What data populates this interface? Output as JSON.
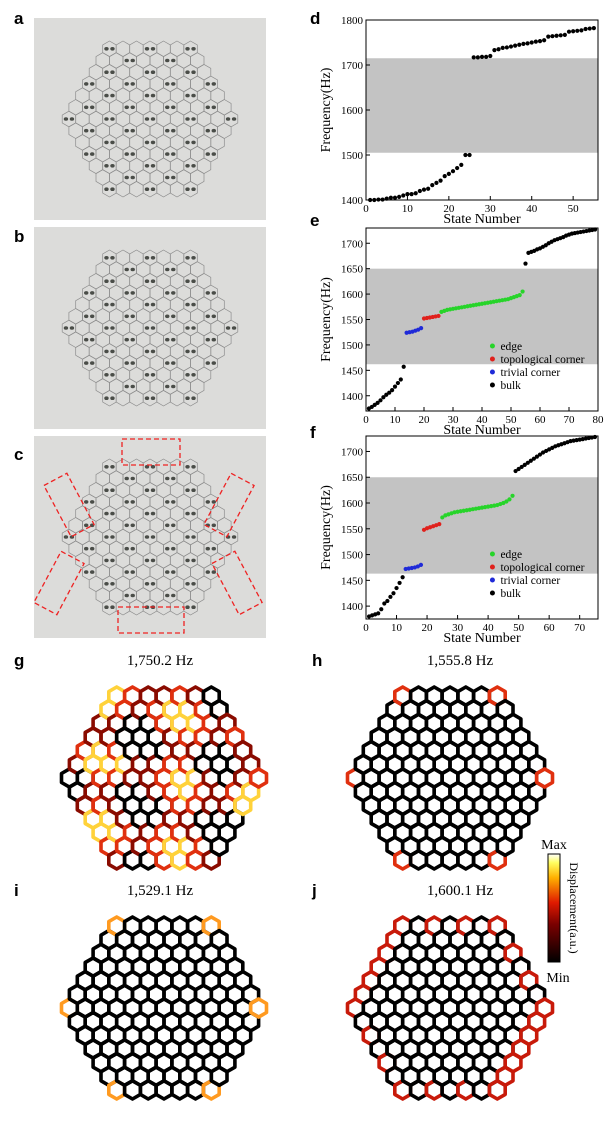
{
  "panels": {
    "a": "a",
    "b": "b",
    "c": "c",
    "d": "d",
    "e": "e",
    "f": "f",
    "g": "g",
    "h": "h",
    "i": "i",
    "j": "j"
  },
  "modes": {
    "g": "1,750.2 Hz",
    "h": "1,555.8 Hz",
    "i": "1,529.1 Hz",
    "j": "1,600.1 Hz"
  },
  "colorbar": {
    "max": "Max",
    "min": "Min",
    "label": "Displacement(a.u.)"
  },
  "chart_data": [
    {
      "id": "d",
      "type": "scatter",
      "xlabel": "State Number",
      "ylabel": "Frequency(Hz)",
      "xlim": [
        0,
        56
      ],
      "ylim": [
        1400,
        1800
      ],
      "xticks": [
        0,
        10,
        20,
        30,
        40,
        50
      ],
      "yticks": [
        1400,
        1500,
        1600,
        1700,
        1800
      ],
      "bandgap": [
        1505,
        1715
      ],
      "series": [
        {
          "name": "bulk",
          "color": "#000000",
          "x": [
            1,
            2,
            3,
            4,
            5,
            6,
            7,
            8,
            9,
            10,
            11,
            12,
            13,
            14,
            15,
            16,
            17,
            18,
            19,
            20,
            21,
            22,
            23,
            24,
            25,
            26,
            27,
            28,
            29,
            30,
            31,
            32,
            33,
            34,
            35,
            36,
            37,
            38,
            39,
            40,
            41,
            42,
            43,
            44,
            45,
            46,
            47,
            48,
            49,
            50,
            51,
            52,
            53,
            54,
            55
          ],
          "y": [
            1400,
            1400,
            1401,
            1401,
            1403,
            1405,
            1405,
            1407,
            1410,
            1413,
            1413,
            1415,
            1420,
            1423,
            1425,
            1433,
            1438,
            1443,
            1453,
            1458,
            1464,
            1471,
            1478,
            1500,
            1500,
            1717,
            1717,
            1718,
            1718,
            1720,
            1733,
            1735,
            1738,
            1739,
            1741,
            1743,
            1745,
            1747,
            1748,
            1750,
            1752,
            1753,
            1755,
            1763,
            1764,
            1765,
            1766,
            1767,
            1774,
            1775,
            1776,
            1777,
            1780,
            1781,
            1782
          ]
        }
      ]
    },
    {
      "id": "e",
      "type": "scatter",
      "xlabel": "State Number",
      "ylabel": "Frequency(Hz)",
      "xlim": [
        0,
        80
      ],
      "ylim": [
        1370,
        1730
      ],
      "xticks": [
        0,
        10,
        20,
        30,
        40,
        50,
        60,
        70,
        80
      ],
      "yticks": [
        1400,
        1450,
        1500,
        1550,
        1600,
        1650,
        1700
      ],
      "bandgap": [
        1462,
        1650
      ],
      "legend": [
        "edge",
        "topological corner",
        "trivial corner",
        "bulk"
      ],
      "series": [
        {
          "name": "bulk",
          "color": "#000000",
          "x": [
            1,
            2,
            3,
            4,
            5,
            6,
            7,
            8,
            9,
            10,
            11,
            12,
            13,
            55,
            56,
            57,
            58,
            59,
            60,
            61,
            62,
            63,
            64,
            65,
            66,
            67,
            68,
            69,
            70,
            71,
            72,
            73,
            74,
            75,
            76,
            77,
            78,
            79
          ],
          "y": [
            1375,
            1378,
            1382,
            1386,
            1391,
            1397,
            1402,
            1406,
            1411,
            1418,
            1425,
            1432,
            1457,
            1660,
            1681,
            1683,
            1685,
            1688,
            1690,
            1693,
            1696,
            1700,
            1703,
            1706,
            1708,
            1710,
            1712,
            1715,
            1717,
            1719,
            1720,
            1721,
            1722,
            1723,
            1724,
            1725,
            1726,
            1727
          ]
        },
        {
          "name": "trivial corner",
          "color": "#1f2ad8",
          "x": [
            14,
            15,
            16,
            17,
            18,
            19
          ],
          "y": [
            1524,
            1525,
            1526,
            1528,
            1530,
            1533
          ]
        },
        {
          "name": "topological corner",
          "color": "#e0211c",
          "x": [
            20,
            21,
            22,
            23,
            24,
            25
          ],
          "y": [
            1552,
            1553,
            1554,
            1555,
            1556,
            1557
          ]
        },
        {
          "name": "edge",
          "color": "#27d42a",
          "x": [
            26,
            27,
            28,
            29,
            30,
            31,
            32,
            33,
            34,
            35,
            36,
            37,
            38,
            39,
            40,
            41,
            42,
            43,
            44,
            45,
            46,
            47,
            48,
            49,
            50,
            51,
            52,
            53,
            54
          ],
          "y": [
            1565,
            1567,
            1569,
            1570,
            1571,
            1572,
            1573,
            1574,
            1575,
            1576,
            1577,
            1578,
            1579,
            1580,
            1581,
            1582,
            1583,
            1584,
            1585,
            1586,
            1587,
            1588,
            1589,
            1590,
            1592,
            1594,
            1596,
            1598,
            1605
          ]
        }
      ]
    },
    {
      "id": "f",
      "type": "scatter",
      "xlabel": "State Number",
      "ylabel": "Frequency(Hz)",
      "xlim": [
        0,
        76
      ],
      "ylim": [
        1375,
        1730
      ],
      "xticks": [
        0,
        10,
        20,
        30,
        40,
        50,
        60,
        70
      ],
      "yticks": [
        1400,
        1450,
        1500,
        1550,
        1600,
        1650,
        1700
      ],
      "bandgap": [
        1463,
        1650
      ],
      "legend": [
        "edge",
        "topological corner",
        "trivial corner",
        "bulk"
      ],
      "series": [
        {
          "name": "bulk",
          "color": "#000000",
          "x": [
            1,
            2,
            3,
            4,
            5,
            6,
            7,
            8,
            9,
            10,
            11,
            12,
            49,
            50,
            51,
            52,
            53,
            54,
            55,
            56,
            57,
            58,
            59,
            60,
            61,
            62,
            63,
            64,
            65,
            66,
            67,
            68,
            69,
            70,
            71,
            72,
            73,
            74,
            75
          ],
          "y": [
            1380,
            1382,
            1384,
            1386,
            1394,
            1405,
            1410,
            1418,
            1425,
            1435,
            1445,
            1456,
            1662,
            1666,
            1670,
            1674,
            1678,
            1682,
            1686,
            1690,
            1694,
            1698,
            1701,
            1704,
            1707,
            1710,
            1712,
            1714,
            1716,
            1718,
            1720,
            1721,
            1722,
            1723,
            1724,
            1725,
            1726,
            1727,
            1728
          ]
        },
        {
          "name": "trivial corner",
          "color": "#1f2ad8",
          "x": [
            13,
            14,
            15,
            16,
            17,
            18
          ],
          "y": [
            1472,
            1473,
            1474,
            1475,
            1477,
            1480
          ]
        },
        {
          "name": "topological corner",
          "color": "#e0211c",
          "x": [
            19,
            20,
            21,
            22,
            23,
            24
          ],
          "y": [
            1548,
            1551,
            1553,
            1555,
            1557,
            1559
          ]
        },
        {
          "name": "edge",
          "color": "#27d42a",
          "x": [
            25,
            26,
            27,
            28,
            29,
            30,
            31,
            32,
            33,
            34,
            35,
            36,
            37,
            38,
            39,
            40,
            41,
            42,
            43,
            44,
            45,
            46,
            47,
            48
          ],
          "y": [
            1572,
            1576,
            1578,
            1580,
            1582,
            1583,
            1584,
            1585,
            1586,
            1587,
            1588,
            1589,
            1590,
            1591,
            1592,
            1593,
            1594,
            1595,
            1596,
            1598,
            1600,
            1603,
            1607,
            1614
          ]
        }
      ]
    }
  ]
}
